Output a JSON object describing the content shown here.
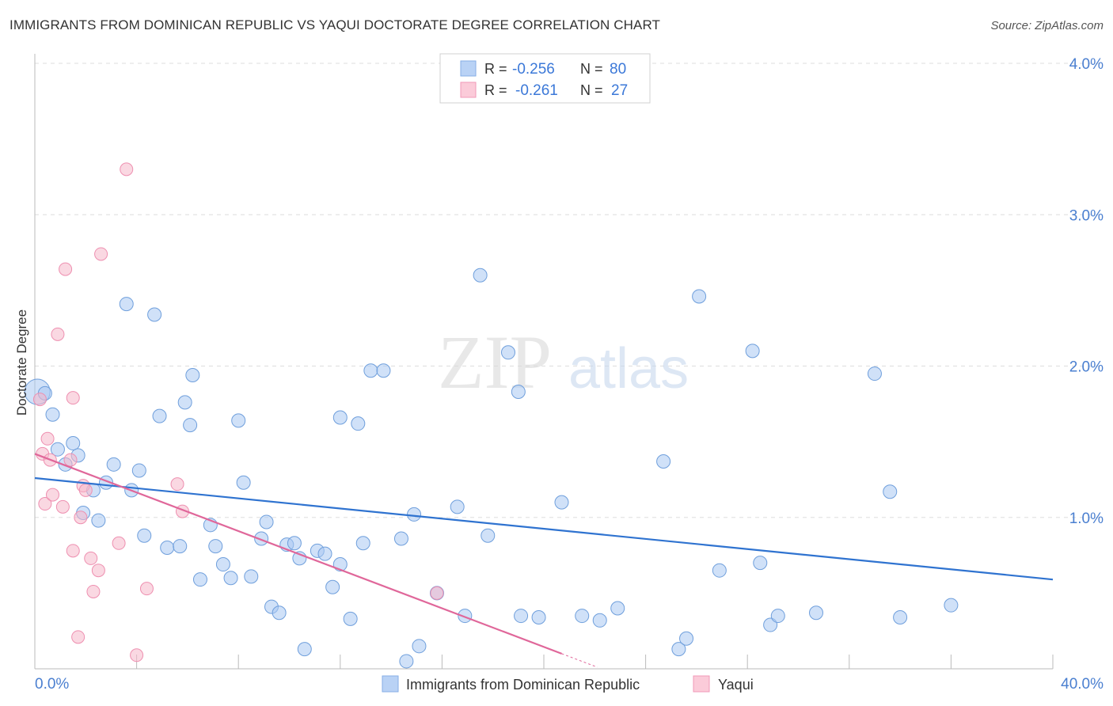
{
  "title": "IMMIGRANTS FROM DOMINICAN REPUBLIC VS YAQUI DOCTORATE DEGREE CORRELATION CHART",
  "source": "Source: ZipAtlas.com",
  "watermark": {
    "zip": "ZIP",
    "atlas": "atlas"
  },
  "legend_box": {
    "rows": [
      {
        "r_label": "R =",
        "r_value": "-0.256",
        "n_label": "N =",
        "n_value": "80"
      },
      {
        "r_label": "R =",
        "r_value": "-0.261",
        "n_label": "N =",
        "n_value": "27"
      }
    ]
  },
  "chart_data": {
    "type": "scatter",
    "title": "IMMIGRANTS FROM DOMINICAN REPUBLIC VS YAQUI DOCTORATE DEGREE CORRELATION CHART",
    "xlabel": "",
    "ylabel": "Doctorate Degree",
    "xlim": [
      0,
      40
    ],
    "ylim": [
      0,
      4.0
    ],
    "x_tick_labels": [
      "0.0%",
      "40.0%"
    ],
    "y_tick_labels": [
      "1.0%",
      "2.0%",
      "3.0%",
      "4.0%"
    ],
    "y_ticks": [
      1.0,
      2.0,
      3.0,
      4.0
    ],
    "grid": true,
    "legend_position": "bottom",
    "colors": {
      "blue": "#a9c8f2",
      "blue_line": "#2f73d0",
      "pink": "#f6b8cb",
      "pink_line": "#e0679a",
      "tick_label": "#4a7fd0"
    },
    "series": [
      {
        "name": "Immigrants from Dominican Republic",
        "color": "#a9c8f2",
        "R": -0.256,
        "N": 80,
        "trend": [
          [
            0,
            1.26
          ],
          [
            40,
            0.59
          ]
        ],
        "points": [
          [
            0.1,
            1.83
          ],
          [
            0.4,
            1.82
          ],
          [
            0.7,
            1.68
          ],
          [
            0.9,
            1.45
          ],
          [
            1.5,
            1.49
          ],
          [
            1.7,
            1.41
          ],
          [
            1.2,
            1.35
          ],
          [
            2.3,
            1.18
          ],
          [
            1.9,
            1.03
          ],
          [
            2.5,
            0.98
          ],
          [
            2.8,
            1.23
          ],
          [
            3.1,
            1.35
          ],
          [
            3.6,
            2.41
          ],
          [
            3.8,
            1.18
          ],
          [
            4.1,
            1.31
          ],
          [
            4.3,
            0.88
          ],
          [
            4.7,
            2.34
          ],
          [
            4.9,
            1.67
          ],
          [
            5.2,
            0.8
          ],
          [
            5.7,
            0.81
          ],
          [
            5.9,
            1.76
          ],
          [
            6.1,
            1.61
          ],
          [
            6.2,
            1.94
          ],
          [
            6.5,
            0.59
          ],
          [
            6.9,
            0.95
          ],
          [
            7.1,
            0.81
          ],
          [
            7.4,
            0.69
          ],
          [
            7.7,
            0.6
          ],
          [
            8.0,
            1.64
          ],
          [
            8.2,
            1.23
          ],
          [
            8.5,
            0.61
          ],
          [
            8.9,
            0.86
          ],
          [
            9.1,
            0.97
          ],
          [
            9.3,
            0.41
          ],
          [
            9.6,
            0.37
          ],
          [
            9.9,
            0.82
          ],
          [
            10.2,
            0.83
          ],
          [
            10.4,
            0.73
          ],
          [
            10.6,
            0.13
          ],
          [
            11.1,
            0.78
          ],
          [
            11.4,
            0.76
          ],
          [
            11.7,
            0.54
          ],
          [
            12.0,
            0.69
          ],
          [
            12.4,
            0.33
          ],
          [
            12.0,
            1.66
          ],
          [
            12.7,
            1.62
          ],
          [
            12.9,
            0.83
          ],
          [
            13.2,
            1.97
          ],
          [
            13.7,
            1.97
          ],
          [
            14.4,
            0.86
          ],
          [
            14.6,
            0.05
          ],
          [
            14.9,
            1.02
          ],
          [
            15.1,
            0.15
          ],
          [
            15.8,
            0.5
          ],
          [
            16.6,
            1.07
          ],
          [
            16.9,
            0.35
          ],
          [
            17.5,
            2.6
          ],
          [
            17.8,
            0.88
          ],
          [
            18.6,
            2.09
          ],
          [
            19.0,
            1.83
          ],
          [
            19.8,
            0.34
          ],
          [
            20.7,
            1.1
          ],
          [
            21.5,
            0.35
          ],
          [
            22.2,
            0.32
          ],
          [
            22.9,
            0.4
          ],
          [
            24.7,
            1.37
          ],
          [
            25.3,
            0.13
          ],
          [
            25.6,
            0.2
          ],
          [
            26.1,
            2.46
          ],
          [
            26.9,
            0.65
          ],
          [
            28.2,
            2.1
          ],
          [
            28.5,
            0.7
          ],
          [
            28.9,
            0.29
          ],
          [
            29.2,
            0.35
          ],
          [
            30.7,
            0.37
          ],
          [
            33.0,
            1.95
          ],
          [
            33.6,
            1.17
          ],
          [
            34.0,
            0.34
          ],
          [
            36.0,
            0.42
          ],
          [
            19.1,
            0.35
          ]
        ]
      },
      {
        "name": "Yaqui",
        "color": "#f6b8cb",
        "R": -0.261,
        "N": 27,
        "trend": [
          [
            0,
            1.42
          ],
          [
            20.7,
            0.1
          ]
        ],
        "points": [
          [
            0.2,
            1.78
          ],
          [
            0.3,
            1.42
          ],
          [
            0.5,
            1.52
          ],
          [
            0.6,
            1.38
          ],
          [
            0.4,
            1.09
          ],
          [
            0.7,
            1.15
          ],
          [
            0.9,
            2.21
          ],
          [
            1.1,
            1.07
          ],
          [
            1.2,
            2.64
          ],
          [
            1.4,
            1.38
          ],
          [
            1.5,
            1.79
          ],
          [
            1.5,
            0.78
          ],
          [
            1.7,
            0.21
          ],
          [
            1.8,
            1.0
          ],
          [
            1.9,
            1.21
          ],
          [
            2.0,
            1.18
          ],
          [
            2.2,
            0.73
          ],
          [
            2.3,
            0.51
          ],
          [
            2.5,
            0.65
          ],
          [
            2.6,
            2.74
          ],
          [
            3.3,
            0.83
          ],
          [
            3.6,
            3.3
          ],
          [
            4.0,
            0.09
          ],
          [
            4.4,
            0.53
          ],
          [
            5.6,
            1.22
          ],
          [
            5.8,
            1.04
          ],
          [
            15.8,
            0.5
          ]
        ]
      }
    ]
  }
}
